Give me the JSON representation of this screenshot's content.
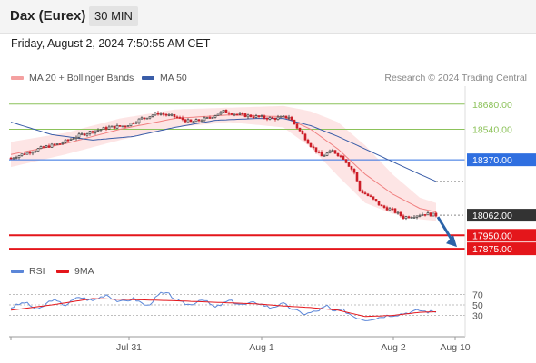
{
  "header": {
    "title": "Dax (Eurex)",
    "timeframe": "30 MIN"
  },
  "date_line": "Friday, August 2, 2024 7:50:55 AM CET",
  "legend": {
    "bb_label": "MA 20 + Bollinger Bands",
    "ma50_label": "MA 50",
    "credit": "Research © 2024 Trading Central",
    "rsi_label": "RSI",
    "rsi_ma_label": "9MA"
  },
  "colors": {
    "bb": "#f4a0a0",
    "ma50": "#3a5da8",
    "resistance": "#8cc25a",
    "pivot": "#2f6fe0",
    "support": "#e4161b",
    "last": "#333333",
    "candle_up": "#333333",
    "candle_down": "#cc1f28",
    "rsi": "#5b86d8",
    "rsi_ma": "#e4161b"
  },
  "chart_data": [
    {
      "type": "candlestick",
      "title": "Dax (Eurex)",
      "timeframe": "30 MIN",
      "x_ticks": [
        "Jul 31",
        "Aug 1",
        "Aug 2",
        "Aug 10"
      ],
      "ylim": [
        17820,
        18780
      ],
      "levels": [
        {
          "label": "18680.00",
          "value": 18680,
          "kind": "resistance"
        },
        {
          "label": "18540.00",
          "value": 18540,
          "kind": "resistance"
        },
        {
          "label": "18370.00",
          "value": 18370,
          "kind": "pivot"
        },
        {
          "label": "18062.00",
          "value": 18062,
          "kind": "last"
        },
        {
          "label": "17950.00",
          "value": 17950,
          "kind": "support"
        },
        {
          "label": "17875.00",
          "value": 17875,
          "kind": "support"
        }
      ],
      "price_anchors": [
        [
          0,
          18380
        ],
        [
          6,
          18410
        ],
        [
          12,
          18440
        ],
        [
          18,
          18460
        ],
        [
          24,
          18500
        ],
        [
          30,
          18530
        ],
        [
          36,
          18550
        ],
        [
          42,
          18560
        ],
        [
          48,
          18600
        ],
        [
          54,
          18630
        ],
        [
          60,
          18610
        ],
        [
          66,
          18580
        ],
        [
          72,
          18600
        ],
        [
          78,
          18640
        ],
        [
          84,
          18620
        ],
        [
          90,
          18610
        ],
        [
          96,
          18600
        ],
        [
          102,
          18610
        ],
        [
          106,
          18530
        ],
        [
          110,
          18450
        ],
        [
          114,
          18390
        ],
        [
          118,
          18420
        ],
        [
          122,
          18380
        ],
        [
          126,
          18300
        ],
        [
          128,
          18200
        ],
        [
          132,
          18160
        ],
        [
          136,
          18110
        ],
        [
          140,
          18090
        ],
        [
          144,
          18050
        ],
        [
          148,
          18060
        ],
        [
          152,
          18070
        ],
        [
          156,
          18062
        ]
      ],
      "ma50_anchors": [
        [
          0,
          18580
        ],
        [
          15,
          18510
        ],
        [
          30,
          18480
        ],
        [
          45,
          18500
        ],
        [
          60,
          18550
        ],
        [
          75,
          18590
        ],
        [
          90,
          18600
        ],
        [
          100,
          18600
        ],
        [
          110,
          18560
        ],
        [
          120,
          18500
        ],
        [
          130,
          18430
        ],
        [
          140,
          18360
        ],
        [
          150,
          18290
        ],
        [
          156,
          18250
        ]
      ],
      "ma20_anchors": [
        [
          0,
          18400
        ],
        [
          20,
          18460
        ],
        [
          40,
          18540
        ],
        [
          60,
          18600
        ],
        [
          80,
          18620
        ],
        [
          100,
          18610
        ],
        [
          110,
          18540
        ],
        [
          120,
          18430
        ],
        [
          130,
          18290
        ],
        [
          140,
          18180
        ],
        [
          150,
          18100
        ],
        [
          156,
          18080
        ]
      ],
      "bb_width_anchors": [
        [
          0,
          70
        ],
        [
          20,
          60
        ],
        [
          40,
          60
        ],
        [
          60,
          50
        ],
        [
          80,
          40
        ],
        [
          100,
          60
        ],
        [
          110,
          100
        ],
        [
          120,
          150
        ],
        [
          130,
          160
        ],
        [
          140,
          110
        ],
        [
          150,
          60
        ],
        [
          156,
          50
        ]
      ],
      "forecast": {
        "from": 18062,
        "to": 17875
      }
    },
    {
      "type": "line",
      "title": "RSI",
      "ylim": [
        0,
        100
      ],
      "y_ticks": [
        70,
        50,
        30
      ],
      "series": [
        {
          "name": "RSI",
          "anchors": [
            [
              0,
              45
            ],
            [
              5,
              55
            ],
            [
              10,
              40
            ],
            [
              15,
              60
            ],
            [
              20,
              50
            ],
            [
              25,
              65
            ],
            [
              30,
              58
            ],
            [
              35,
              70
            ],
            [
              40,
              55
            ],
            [
              45,
              62
            ],
            [
              50,
              48
            ],
            [
              55,
              72
            ],
            [
              58,
              70
            ],
            [
              62,
              55
            ],
            [
              66,
              50
            ],
            [
              70,
              62
            ],
            [
              75,
              45
            ],
            [
              80,
              58
            ],
            [
              85,
              50
            ],
            [
              90,
              55
            ],
            [
              95,
              45
            ],
            [
              100,
              52
            ],
            [
              104,
              40
            ],
            [
              108,
              33
            ],
            [
              112,
              38
            ],
            [
              116,
              48
            ],
            [
              118,
              38
            ],
            [
              122,
              40
            ],
            [
              126,
              28
            ],
            [
              130,
              22
            ],
            [
              134,
              25
            ],
            [
              138,
              30
            ],
            [
              142,
              32
            ],
            [
              146,
              36
            ],
            [
              150,
              40
            ],
            [
              153,
              37
            ],
            [
              156,
              38
            ]
          ]
        },
        {
          "name": "9MA",
          "anchors": [
            [
              0,
              40
            ],
            [
              15,
              50
            ],
            [
              30,
              62
            ],
            [
              45,
              60
            ],
            [
              60,
              58
            ],
            [
              75,
              55
            ],
            [
              90,
              52
            ],
            [
              100,
              48
            ],
            [
              110,
              45
            ],
            [
              120,
              40
            ],
            [
              130,
              28
            ],
            [
              140,
              30
            ],
            [
              150,
              36
            ],
            [
              156,
              37
            ]
          ]
        }
      ]
    }
  ]
}
